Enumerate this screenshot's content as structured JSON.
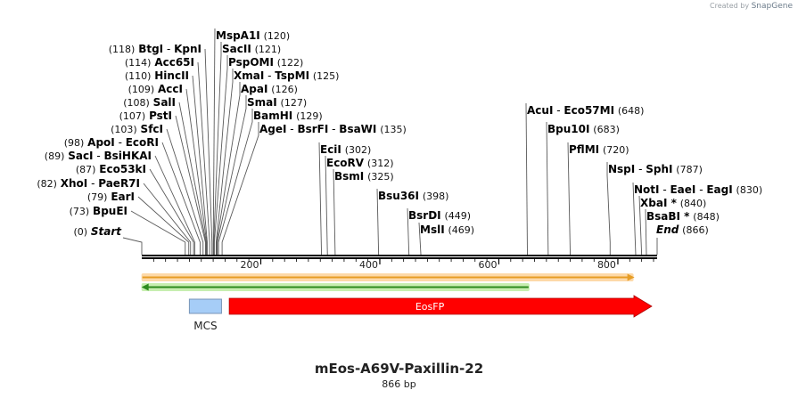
{
  "watermark": {
    "prefix": "Created by",
    "brand": "SnapGene"
  },
  "map": {
    "name": "mEos-A69V-Paxillin-22",
    "size_label": "866 bp",
    "length_bp": 866,
    "tick_labels": [
      "200",
      "400",
      "600",
      "800"
    ]
  },
  "sites": [
    {
      "names": [
        "Start"
      ],
      "pos": 0,
      "pos_label": "(0)",
      "special": true
    },
    {
      "names": [
        "BpuEI"
      ],
      "pos": 73,
      "pos_label": "(73)"
    },
    {
      "names": [
        "EarI"
      ],
      "pos": 79,
      "pos_label": "(79)"
    },
    {
      "names": [
        "XhoI",
        "PaeR7I"
      ],
      "pos": 82,
      "pos_label": "(82)"
    },
    {
      "names": [
        "Eco53kI"
      ],
      "pos": 87,
      "pos_label": "(87)"
    },
    {
      "names": [
        "SacI",
        "BsiHKAI"
      ],
      "pos": 89,
      "pos_label": "(89)"
    },
    {
      "names": [
        "ApoI",
        "EcoRI"
      ],
      "pos": 98,
      "pos_label": "(98)"
    },
    {
      "names": [
        "SfcI"
      ],
      "pos": 103,
      "pos_label": "(103)"
    },
    {
      "names": [
        "PstI"
      ],
      "pos": 107,
      "pos_label": "(107)"
    },
    {
      "names": [
        "SalI"
      ],
      "pos": 108,
      "pos_label": "(108)"
    },
    {
      "names": [
        "AccI"
      ],
      "pos": 109,
      "pos_label": "(109)"
    },
    {
      "names": [
        "HincII"
      ],
      "pos": 110,
      "pos_label": "(110)"
    },
    {
      "names": [
        "Acc65I"
      ],
      "pos": 114,
      "pos_label": "(114)"
    },
    {
      "names": [
        "BtgI",
        "KpnI"
      ],
      "pos": 118,
      "pos_label": "(118)"
    },
    {
      "names": [
        "MspA1I"
      ],
      "pos": 120,
      "pos_label": "(120)"
    },
    {
      "names": [
        "SacII"
      ],
      "pos": 121,
      "pos_label": "(121)"
    },
    {
      "names": [
        "PspOMI"
      ],
      "pos": 122,
      "pos_label": "(122)"
    },
    {
      "names": [
        "XmaI",
        "TspMI"
      ],
      "pos": 125,
      "pos_label": "(125)"
    },
    {
      "names": [
        "ApaI"
      ],
      "pos": 126,
      "pos_label": "(126)"
    },
    {
      "names": [
        "SmaI"
      ],
      "pos": 127,
      "pos_label": "(127)"
    },
    {
      "names": [
        "BamHI"
      ],
      "pos": 129,
      "pos_label": "(129)"
    },
    {
      "names": [
        "AgeI",
        "BsrFI",
        "BsaWI"
      ],
      "pos": 135,
      "pos_label": "(135)"
    },
    {
      "names": [
        "EciI"
      ],
      "pos": 302,
      "pos_label": "(302)"
    },
    {
      "names": [
        "EcoRV"
      ],
      "pos": 312,
      "pos_label": "(312)"
    },
    {
      "names": [
        "BsmI"
      ],
      "pos": 325,
      "pos_label": "(325)"
    },
    {
      "names": [
        "Bsu36I"
      ],
      "pos": 398,
      "pos_label": "(398)"
    },
    {
      "names": [
        "BsrDI"
      ],
      "pos": 449,
      "pos_label": "(449)"
    },
    {
      "names": [
        "MslI"
      ],
      "pos": 469,
      "pos_label": "(469)"
    },
    {
      "names": [
        "AcuI",
        "Eco57MI"
      ],
      "pos": 648,
      "pos_label": "(648)"
    },
    {
      "names": [
        "Bpu10I"
      ],
      "pos": 683,
      "pos_label": "(683)"
    },
    {
      "names": [
        "PflMI"
      ],
      "pos": 720,
      "pos_label": "(720)"
    },
    {
      "names": [
        "NspI",
        "SphI"
      ],
      "pos": 787,
      "pos_label": "(787)"
    },
    {
      "names": [
        "NotI",
        "EaeI",
        "EagI"
      ],
      "pos": 830,
      "pos_label": "(830)"
    },
    {
      "names": [
        "XbaI *"
      ],
      "pos": 840,
      "pos_label": "(840)"
    },
    {
      "names": [
        "BsaBI *"
      ],
      "pos": 848,
      "pos_label": "(848)"
    },
    {
      "names": [
        "End"
      ],
      "pos": 866,
      "pos_label": "(866)",
      "special": true
    }
  ],
  "features": {
    "mcs": {
      "label": "MCS",
      "start": 80,
      "end": 134,
      "color": "#a6cdf7"
    },
    "eosfp": {
      "label": "EosFP",
      "start": 147,
      "end": 827,
      "color": "#ff0000"
    },
    "orf_forward": {
      "start": 1,
      "end": 825,
      "color": "#e69d26"
    },
    "orf_reverse": {
      "start": 1,
      "end": 650,
      "color": "#2e8b1e"
    }
  }
}
